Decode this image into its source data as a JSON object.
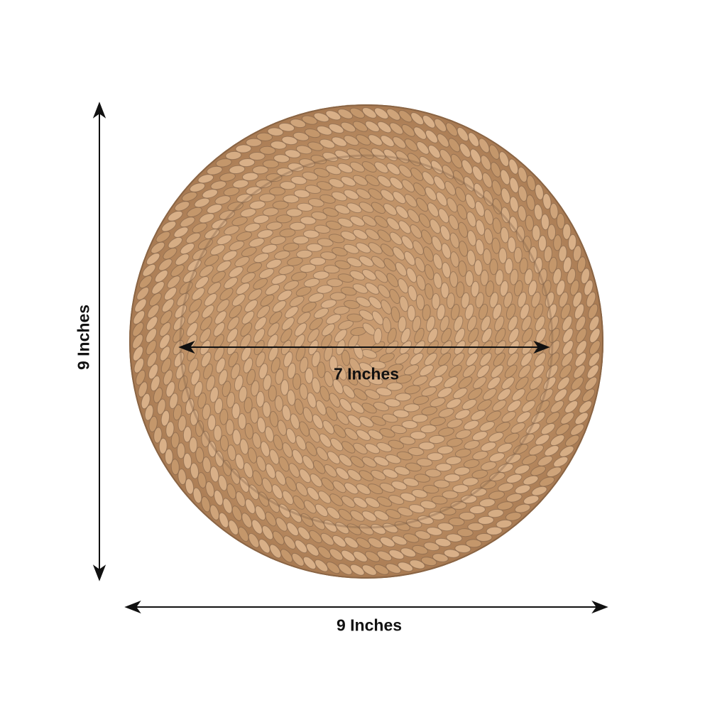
{
  "product": {
    "name": "woven water hyacinth print round plate",
    "colors": {
      "base": "#b98a5e",
      "light": "#d9b088",
      "shadow": "#6b5240"
    }
  },
  "dimensions": {
    "height_label": "9 Inches",
    "width_label": "9 Inches",
    "inner_label": "7 Inches"
  },
  "arrow_color": "#111111"
}
